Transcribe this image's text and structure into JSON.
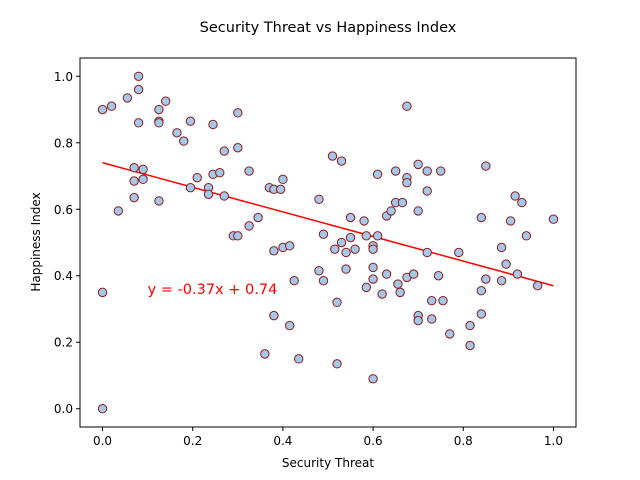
{
  "chart_data": {
    "type": "scatter",
    "title": "Security Threat vs Happiness Index",
    "xlabel": "Security Threat",
    "ylabel": "Happiness Index",
    "xlim": [
      -0.05,
      1.05
    ],
    "ylim": [
      -0.055,
      1.055
    ],
    "xticks": [
      0.0,
      0.2,
      0.4,
      0.6,
      0.8,
      1.0
    ],
    "yticks": [
      0.0,
      0.2,
      0.4,
      0.6,
      0.8,
      1.0
    ],
    "xtick_labels": [
      "0.0",
      "0.2",
      "0.4",
      "0.6",
      "0.8",
      "1.0"
    ],
    "ytick_labels": [
      "0.0",
      "0.2",
      "0.4",
      "0.6",
      "0.8",
      "1.0"
    ],
    "grid": false,
    "colors": {
      "marker_fill": "#a5c8e8",
      "marker_edge": "#8b1a1a",
      "fit_line": "#ff0000",
      "annotation": "#ff0000"
    },
    "fit_line": {
      "slope": -0.37,
      "intercept": 0.74,
      "x_range": [
        0.0,
        1.0
      ]
    },
    "annotation": {
      "text": "y = -0.37x + 0.74",
      "x": 0.1,
      "y": 0.36
    },
    "points": [
      [
        0.0,
        0.9
      ],
      [
        0.02,
        0.91
      ],
      [
        0.035,
        0.595
      ],
      [
        0.055,
        0.935
      ],
      [
        0.07,
        0.725
      ],
      [
        0.07,
        0.685
      ],
      [
        0.07,
        0.635
      ],
      [
        0.08,
        1.0
      ],
      [
        0.08,
        0.96
      ],
      [
        0.08,
        0.86
      ],
      [
        0.09,
        0.72
      ],
      [
        0.09,
        0.69
      ],
      [
        0.0,
        0.35
      ],
      [
        0.0,
        0.0
      ],
      [
        0.125,
        0.9
      ],
      [
        0.125,
        0.865
      ],
      [
        0.125,
        0.86
      ],
      [
        0.125,
        0.625
      ],
      [
        0.14,
        0.925
      ],
      [
        0.165,
        0.83
      ],
      [
        0.18,
        0.805
      ],
      [
        0.195,
        0.865
      ],
      [
        0.195,
        0.665
      ],
      [
        0.21,
        0.695
      ],
      [
        0.235,
        0.665
      ],
      [
        0.235,
        0.645
      ],
      [
        0.245,
        0.855
      ],
      [
        0.245,
        0.705
      ],
      [
        0.26,
        0.71
      ],
      [
        0.27,
        0.775
      ],
      [
        0.27,
        0.64
      ],
      [
        0.29,
        0.52
      ],
      [
        0.3,
        0.89
      ],
      [
        0.3,
        0.785
      ],
      [
        0.3,
        0.52
      ],
      [
        0.325,
        0.715
      ],
      [
        0.325,
        0.55
      ],
      [
        0.345,
        0.575
      ],
      [
        0.36,
        0.165
      ],
      [
        0.37,
        0.665
      ],
      [
        0.38,
        0.66
      ],
      [
        0.38,
        0.475
      ],
      [
        0.38,
        0.28
      ],
      [
        0.395,
        0.66
      ],
      [
        0.4,
        0.69
      ],
      [
        0.4,
        0.485
      ],
      [
        0.415,
        0.49
      ],
      [
        0.415,
        0.25
      ],
      [
        0.425,
        0.385
      ],
      [
        0.435,
        0.15
      ],
      [
        0.48,
        0.63
      ],
      [
        0.48,
        0.415
      ],
      [
        0.49,
        0.525
      ],
      [
        0.49,
        0.385
      ],
      [
        0.51,
        0.76
      ],
      [
        0.515,
        0.48
      ],
      [
        0.52,
        0.32
      ],
      [
        0.52,
        0.135
      ],
      [
        0.53,
        0.745
      ],
      [
        0.53,
        0.5
      ],
      [
        0.54,
        0.47
      ],
      [
        0.54,
        0.42
      ],
      [
        0.55,
        0.575
      ],
      [
        0.55,
        0.515
      ],
      [
        0.56,
        0.48
      ],
      [
        0.58,
        0.565
      ],
      [
        0.585,
        0.52
      ],
      [
        0.585,
        0.365
      ],
      [
        0.6,
        0.49
      ],
      [
        0.6,
        0.48
      ],
      [
        0.6,
        0.425
      ],
      [
        0.6,
        0.39
      ],
      [
        0.6,
        0.09
      ],
      [
        0.61,
        0.705
      ],
      [
        0.61,
        0.52
      ],
      [
        0.62,
        0.345
      ],
      [
        0.63,
        0.58
      ],
      [
        0.63,
        0.405
      ],
      [
        0.64,
        0.595
      ],
      [
        0.65,
        0.715
      ],
      [
        0.65,
        0.62
      ],
      [
        0.655,
        0.375
      ],
      [
        0.66,
        0.35
      ],
      [
        0.665,
        0.62
      ],
      [
        0.675,
        0.91
      ],
      [
        0.675,
        0.695
      ],
      [
        0.675,
        0.68
      ],
      [
        0.675,
        0.395
      ],
      [
        0.69,
        0.405
      ],
      [
        0.7,
        0.735
      ],
      [
        0.7,
        0.595
      ],
      [
        0.7,
        0.28
      ],
      [
        0.7,
        0.265
      ],
      [
        0.72,
        0.715
      ],
      [
        0.72,
        0.655
      ],
      [
        0.72,
        0.47
      ],
      [
        0.73,
        0.325
      ],
      [
        0.73,
        0.27
      ],
      [
        0.745,
        0.4
      ],
      [
        0.75,
        0.715
      ],
      [
        0.755,
        0.325
      ],
      [
        0.77,
        0.225
      ],
      [
        0.79,
        0.47
      ],
      [
        0.815,
        0.25
      ],
      [
        0.815,
        0.19
      ],
      [
        0.84,
        0.575
      ],
      [
        0.84,
        0.355
      ],
      [
        0.84,
        0.285
      ],
      [
        0.85,
        0.73
      ],
      [
        0.85,
        0.39
      ],
      [
        0.885,
        0.485
      ],
      [
        0.885,
        0.385
      ],
      [
        0.895,
        0.435
      ],
      [
        0.905,
        0.565
      ],
      [
        0.915,
        0.64
      ],
      [
        0.92,
        0.405
      ],
      [
        0.93,
        0.62
      ],
      [
        0.94,
        0.52
      ],
      [
        0.965,
        0.37
      ],
      [
        1.0,
        0.57
      ]
    ]
  }
}
